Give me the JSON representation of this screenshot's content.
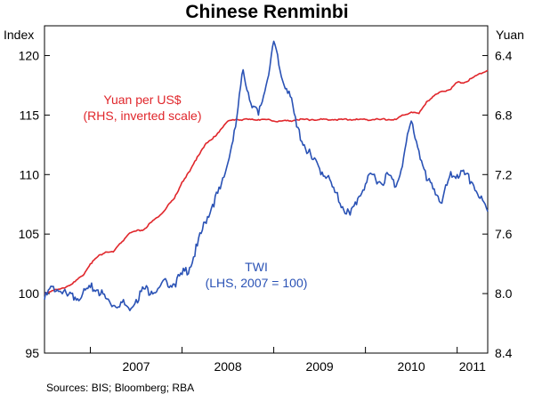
{
  "chart_data": {
    "type": "line",
    "title": "Chinese Renminbi",
    "source": "Sources: BIS; Bloomberg; RBA",
    "left_axis": {
      "unit": "Index",
      "ylim": [
        95,
        122.5
      ],
      "ticks": [
        95,
        100,
        105,
        110,
        115,
        120
      ]
    },
    "right_axis": {
      "unit": "Yuan",
      "inverted": true,
      "ylim": [
        8.4,
        6.2
      ],
      "ticks": [
        "6.4",
        "6.8",
        "7.2",
        "7.6",
        "8.0",
        "8.4"
      ]
    },
    "x_axis": {
      "tick_labels": [
        "2007",
        "2008",
        "2009",
        "2010",
        "2011"
      ],
      "range": [
        "2006-07",
        "2011-05"
      ]
    },
    "annotations": {
      "yuan_label_line1": "Yuan per US$",
      "yuan_label_line2": "(RHS, inverted scale)",
      "twi_label_line1": "TWI",
      "twi_label_line2": "(LHS, 2007 = 100)"
    },
    "colors": {
      "yuan": "#e0262b",
      "twi": "#2a52b5",
      "axis": "#000000"
    },
    "series": [
      {
        "name": "Yuan per US$",
        "axis": "right",
        "x": [
          "2006-07",
          "2006-08",
          "2006-09",
          "2006-10",
          "2006-11",
          "2006-12",
          "2007-01",
          "2007-02",
          "2007-03",
          "2007-04",
          "2007-05",
          "2007-06",
          "2007-07",
          "2007-08",
          "2007-09",
          "2007-10",
          "2007-11",
          "2007-12",
          "2008-01",
          "2008-02",
          "2008-03",
          "2008-04",
          "2008-05",
          "2008-06",
          "2008-07",
          "2008-08",
          "2008-09",
          "2008-10",
          "2008-11",
          "2008-12",
          "2009-01",
          "2009-02",
          "2009-03",
          "2009-04",
          "2009-05",
          "2009-06",
          "2009-07",
          "2009-08",
          "2009-09",
          "2009-10",
          "2009-11",
          "2009-12",
          "2010-01",
          "2010-02",
          "2010-03",
          "2010-04",
          "2010-05",
          "2010-06",
          "2010-07",
          "2010-08",
          "2010-09",
          "2010-10",
          "2010-11",
          "2010-12",
          "2011-01",
          "2011-02",
          "2011-03",
          "2011-04",
          "2011-05"
        ],
        "y": [
          8.0,
          7.98,
          7.97,
          7.95,
          7.92,
          7.88,
          7.8,
          7.75,
          7.72,
          7.72,
          7.66,
          7.6,
          7.58,
          7.57,
          7.52,
          7.48,
          7.42,
          7.36,
          7.25,
          7.18,
          7.08,
          7.0,
          6.96,
          6.9,
          6.84,
          6.83,
          6.83,
          6.83,
          6.83,
          6.83,
          6.84,
          6.84,
          6.84,
          6.83,
          6.83,
          6.83,
          6.83,
          6.83,
          6.83,
          6.83,
          6.83,
          6.83,
          6.83,
          6.83,
          6.83,
          6.83,
          6.83,
          6.8,
          6.78,
          6.79,
          6.71,
          6.67,
          6.64,
          6.63,
          6.58,
          6.58,
          6.55,
          6.52,
          6.5
        ]
      },
      {
        "name": "TWI",
        "axis": "left",
        "x": [
          "2006-07",
          "2006-08",
          "2006-09",
          "2006-10",
          "2006-11",
          "2006-12",
          "2007-01",
          "2007-02",
          "2007-03",
          "2007-04",
          "2007-05",
          "2007-06",
          "2007-07",
          "2007-08",
          "2007-09",
          "2007-10",
          "2007-11",
          "2007-12",
          "2008-01",
          "2008-02",
          "2008-03",
          "2008-04",
          "2008-05",
          "2008-06",
          "2008-07",
          "2008-08",
          "2008-09",
          "2008-10",
          "2008-11",
          "2008-12",
          "2009-01",
          "2009-02",
          "2009-03",
          "2009-04",
          "2009-05",
          "2009-06",
          "2009-07",
          "2009-08",
          "2009-09",
          "2009-10",
          "2009-11",
          "2009-12",
          "2010-01",
          "2010-02",
          "2010-03",
          "2010-04",
          "2010-05",
          "2010-06",
          "2010-07",
          "2010-08",
          "2010-09",
          "2010-10",
          "2010-11",
          "2010-12",
          "2011-01",
          "2011-02",
          "2011-03",
          "2011-04",
          "2011-05"
        ],
        "y": [
          99.5,
          100.6,
          100.2,
          99.8,
          99.7,
          100.0,
          100.5,
          100.3,
          99.6,
          99.0,
          99.3,
          98.8,
          99.5,
          100.4,
          100.2,
          100.5,
          101.0,
          100.8,
          101.6,
          102.2,
          104.0,
          106.0,
          107.5,
          108.8,
          111.0,
          114.0,
          118.8,
          116.0,
          115.0,
          117.5,
          121.2,
          118.2,
          117.0,
          114.0,
          112.5,
          111.3,
          110.5,
          109.8,
          108.5,
          107.3,
          106.6,
          108.0,
          109.2,
          110.0,
          109.3,
          110.0,
          109.0,
          111.5,
          114.5,
          112.0,
          109.5,
          108.8,
          107.6,
          109.8,
          110.0,
          110.0,
          109.3,
          108.0,
          106.9
        ]
      }
    ]
  }
}
